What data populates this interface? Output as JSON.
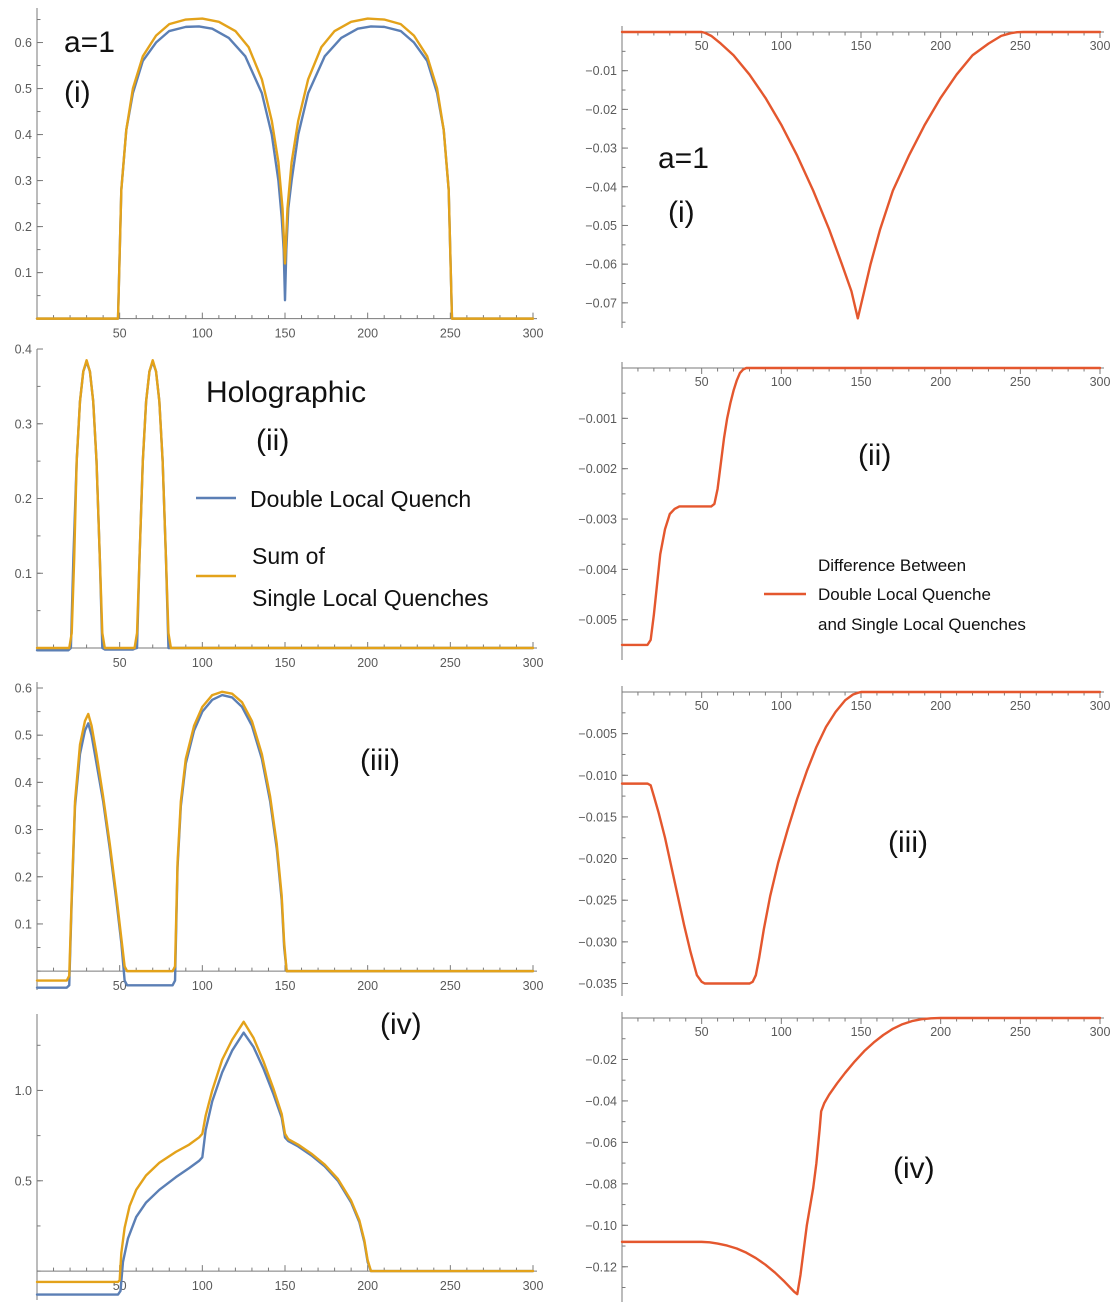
{
  "colors": {
    "double": "#5b7fb5",
    "sum": "#e3a21a",
    "difference": "#e4572e"
  },
  "legend": {
    "title": "Holographic",
    "panel_label": "(ii)",
    "double_label": "Double Local Quench",
    "sum_label_1": "Sum of",
    "sum_label_2": "Single Local Quenches",
    "diff_label_1": "Difference Between",
    "diff_label_2": "Double Local Quenche",
    "diff_label_3": "and Single Local Quenches"
  },
  "chart_data": [
    {
      "id": "L1",
      "type": "line",
      "a_label": "a=1",
      "panel_label": "(i)",
      "xlim": [
        0,
        300
      ],
      "ylim": [
        -0.003,
        0.662
      ],
      "yticks": [
        0.1,
        0.2,
        0.3,
        0.4,
        0.5,
        0.6
      ],
      "xticks": [
        50,
        100,
        150,
        200,
        250,
        300
      ],
      "series": [
        {
          "name": "Double Local Quench",
          "color_key": "double",
          "x": [
            0,
            49,
            51,
            54,
            58,
            64,
            72,
            80,
            90,
            98,
            106,
            116,
            126,
            136,
            142,
            146,
            148,
            149.2,
            150,
            150.8,
            152,
            154,
            158,
            164,
            174,
            184,
            194,
            202,
            210,
            220,
            228,
            236,
            242,
            246,
            249,
            251,
            300
          ],
          "y": [
            0,
            0,
            0.28,
            0.41,
            0.49,
            0.56,
            0.6,
            0.625,
            0.634,
            0.635,
            0.63,
            0.61,
            0.57,
            0.49,
            0.4,
            0.3,
            0.22,
            0.15,
            0.04,
            0.15,
            0.24,
            0.3,
            0.4,
            0.49,
            0.57,
            0.61,
            0.63,
            0.635,
            0.634,
            0.625,
            0.6,
            0.56,
            0.49,
            0.41,
            0.28,
            0,
            0
          ]
        },
        {
          "name": "Sum of Single Local Quenches",
          "color_key": "sum",
          "x": [
            0,
            49,
            51,
            54,
            58,
            64,
            72,
            80,
            90,
            100,
            110,
            120,
            128,
            136,
            142,
            146,
            148.5,
            150,
            151.5,
            154,
            158,
            164,
            172,
            180,
            190,
            200,
            210,
            220,
            228,
            236,
            242,
            246,
            249,
            251,
            300
          ],
          "y": [
            0,
            0,
            0.28,
            0.41,
            0.5,
            0.57,
            0.615,
            0.64,
            0.65,
            0.652,
            0.645,
            0.625,
            0.59,
            0.52,
            0.43,
            0.34,
            0.24,
            0.12,
            0.24,
            0.34,
            0.43,
            0.52,
            0.59,
            0.625,
            0.645,
            0.652,
            0.65,
            0.64,
            0.615,
            0.57,
            0.5,
            0.41,
            0.28,
            0,
            0
          ]
        }
      ]
    },
    {
      "id": "L2",
      "type": "line",
      "xlim": [
        0,
        300
      ],
      "ylim": [
        -0.004,
        0.392
      ],
      "yticks": [
        0.1,
        0.2,
        0.3,
        0.4
      ],
      "xticks": [
        50,
        100,
        150,
        200,
        250,
        300
      ],
      "series": [
        {
          "name": "Double Local Quench",
          "color_key": "double",
          "x": [
            0,
            19,
            20.5,
            22,
            24,
            26,
            28,
            30,
            32,
            34,
            36,
            38,
            39.5,
            41,
            42,
            58,
            59,
            60.5,
            62,
            64,
            66,
            68,
            70,
            72,
            74,
            76,
            78,
            79.5,
            81,
            300
          ],
          "y": [
            -0.003,
            -0.003,
            0,
            0.12,
            0.25,
            0.33,
            0.37,
            0.383,
            0.37,
            0.33,
            0.25,
            0.12,
            0,
            -0.002,
            -0.002,
            -0.002,
            -0.001,
            0,
            0.12,
            0.25,
            0.33,
            0.37,
            0.383,
            0.37,
            0.33,
            0.25,
            0.12,
            0,
            0,
            0
          ]
        },
        {
          "name": "Sum of Single Local Quenches",
          "color_key": "sum",
          "x": [
            0,
            19.5,
            21,
            22.5,
            24,
            26,
            28,
            30,
            32,
            34,
            36,
            38,
            39.5,
            41,
            59,
            60.5,
            62,
            64,
            66,
            68,
            70,
            72,
            74,
            76,
            78,
            79.5,
            81,
            300
          ],
          "y": [
            0,
            0,
            0.02,
            0.12,
            0.25,
            0.33,
            0.37,
            0.385,
            0.37,
            0.33,
            0.25,
            0.12,
            0.02,
            0,
            0,
            0.02,
            0.12,
            0.25,
            0.33,
            0.37,
            0.385,
            0.37,
            0.33,
            0.25,
            0.12,
            0.02,
            0,
            0
          ]
        }
      ]
    },
    {
      "id": "L3",
      "type": "line",
      "panel_label": "(iii)",
      "xlim": [
        0,
        300
      ],
      "ylim": [
        -0.04,
        0.6
      ],
      "yticks": [
        0.1,
        0.2,
        0.3,
        0.4,
        0.5,
        0.6
      ],
      "xticks": [
        50,
        100,
        150,
        200,
        250,
        300
      ],
      "series": [
        {
          "name": "Double Local Quench",
          "color_key": "double",
          "x": [
            0,
            18,
            19.5,
            21,
            23,
            26,
            29,
            31,
            33,
            36,
            40,
            44,
            48,
            51,
            53,
            54.5,
            56,
            82,
            83.5,
            85,
            87,
            90,
            95,
            100,
            106,
            112,
            118,
            124,
            130,
            136,
            141,
            145,
            148,
            149.5,
            151,
            300
          ],
          "y": [
            -0.035,
            -0.035,
            -0.03,
            0.15,
            0.35,
            0.46,
            0.51,
            0.525,
            0.5,
            0.44,
            0.36,
            0.26,
            0.15,
            0.06,
            -0.02,
            -0.03,
            -0.03,
            -0.03,
            -0.02,
            0.22,
            0.35,
            0.44,
            0.51,
            0.55,
            0.575,
            0.585,
            0.58,
            0.56,
            0.52,
            0.45,
            0.36,
            0.26,
            0.15,
            0.05,
            0,
            0
          ]
        },
        {
          "name": "Sum of Single Local Quenches",
          "color_key": "sum",
          "x": [
            0,
            18,
            19.5,
            21,
            23,
            26,
            29,
            31,
            33,
            36,
            40,
            44,
            48,
            51,
            53,
            54.5,
            56,
            82,
            83.5,
            85,
            87,
            90,
            95,
            100,
            106,
            112,
            118,
            124,
            130,
            136,
            141,
            145,
            148,
            149.5,
            151,
            300
          ],
          "y": [
            -0.02,
            -0.02,
            -0.01,
            0.16,
            0.36,
            0.48,
            0.53,
            0.545,
            0.52,
            0.46,
            0.37,
            0.27,
            0.16,
            0.07,
            0.01,
            0,
            0,
            0,
            0.01,
            0.23,
            0.36,
            0.45,
            0.52,
            0.56,
            0.585,
            0.592,
            0.588,
            0.57,
            0.53,
            0.46,
            0.37,
            0.27,
            0.16,
            0.06,
            0,
            0
          ]
        }
      ]
    },
    {
      "id": "L4",
      "type": "line",
      "panel_label": "(iv)",
      "xlim": [
        0,
        300
      ],
      "ylim": [
        -0.16,
        1.39
      ],
      "yticks": [
        0.5,
        1.0
      ],
      "xticks": [
        50,
        100,
        150,
        200,
        250,
        300
      ],
      "series": [
        {
          "name": "Double Local Quench",
          "color_key": "double",
          "x": [
            0,
            49,
            50.5,
            52,
            55,
            60,
            66,
            74,
            84,
            92,
            98,
            100,
            102,
            106,
            112,
            118,
            125,
            131,
            137,
            143,
            148,
            150,
            152,
            158,
            166,
            174,
            182,
            190,
            195,
            198,
            200,
            202,
            300
          ],
          "y": [
            -0.13,
            -0.13,
            -0.11,
            0.05,
            0.18,
            0.3,
            0.38,
            0.45,
            0.52,
            0.57,
            0.61,
            0.63,
            0.78,
            0.94,
            1.1,
            1.22,
            1.32,
            1.24,
            1.12,
            0.98,
            0.85,
            0.74,
            0.72,
            0.69,
            0.64,
            0.58,
            0.5,
            0.38,
            0.27,
            0.16,
            0.05,
            0,
            0
          ]
        },
        {
          "name": "Sum of Single Local Quenches",
          "color_key": "sum",
          "x": [
            0,
            49,
            50,
            51,
            53,
            56,
            60,
            66,
            74,
            84,
            92,
            98,
            100,
            102,
            106,
            112,
            118,
            125,
            131,
            137,
            143,
            148,
            150,
            152,
            158,
            166,
            174,
            182,
            190,
            195,
            198,
            200,
            202,
            300
          ],
          "y": [
            -0.06,
            -0.06,
            -0.05,
            0.1,
            0.24,
            0.36,
            0.45,
            0.53,
            0.6,
            0.66,
            0.7,
            0.74,
            0.76,
            0.86,
            1.0,
            1.17,
            1.28,
            1.38,
            1.29,
            1.16,
            1.01,
            0.87,
            0.76,
            0.73,
            0.7,
            0.65,
            0.59,
            0.51,
            0.39,
            0.28,
            0.17,
            0.06,
            0,
            0
          ]
        }
      ]
    },
    {
      "id": "R1",
      "type": "line",
      "a_label": "a=1",
      "panel_label": "(i)",
      "xlim": [
        0,
        300
      ],
      "ylim": [
        -0.0765,
        0
      ],
      "yticks": [
        -0.01,
        -0.02,
        -0.03,
        -0.04,
        -0.05,
        -0.06,
        -0.07
      ],
      "ytick_labels": [
        "−0.01",
        "−0.02",
        "−0.03",
        "−0.04",
        "−0.05",
        "−0.06",
        "−0.07"
      ],
      "xticks": [
        50,
        100,
        150,
        200,
        250,
        300
      ],
      "series": [
        {
          "name": "Difference",
          "color_key": "difference",
          "x": [
            0,
            50,
            52,
            56,
            62,
            70,
            80,
            90,
            100,
            110,
            120,
            130,
            138,
            144,
            148,
            152,
            156,
            162,
            170,
            180,
            190,
            200,
            210,
            220,
            230,
            238,
            244,
            248,
            252,
            300
          ],
          "y": [
            0,
            0,
            -0.0002,
            -0.001,
            -0.003,
            -0.006,
            -0.011,
            -0.017,
            -0.024,
            -0.032,
            -0.041,
            -0.051,
            -0.06,
            -0.067,
            -0.074,
            -0.067,
            -0.06,
            -0.051,
            -0.041,
            -0.032,
            -0.024,
            -0.017,
            -0.011,
            -0.006,
            -0.003,
            -0.001,
            -0.0003,
            -5e-05,
            0,
            0
          ]
        }
      ]
    },
    {
      "id": "R2",
      "type": "line",
      "panel_label": "(ii)",
      "xlim": [
        0,
        300
      ],
      "ylim": [
        -0.0058,
        0
      ],
      "yticks": [
        -0.001,
        -0.002,
        -0.003,
        -0.004,
        -0.005
      ],
      "ytick_labels": [
        "−0.001",
        "−0.002",
        "−0.003",
        "−0.004",
        "−0.005"
      ],
      "xticks": [
        50,
        100,
        150,
        200,
        250,
        300
      ],
      "series": [
        {
          "name": "Difference",
          "color_key": "difference",
          "x": [
            0,
            16,
            18,
            20,
            22,
            24,
            27,
            30,
            33,
            36,
            40,
            56,
            58,
            60,
            62,
            64,
            66,
            68,
            70,
            72,
            74,
            76,
            78,
            80,
            300
          ],
          "y": [
            -0.0055,
            -0.0055,
            -0.0054,
            -0.0049,
            -0.0043,
            -0.0037,
            -0.0032,
            -0.0029,
            -0.0028,
            -0.00275,
            -0.00275,
            -0.00275,
            -0.0027,
            -0.0024,
            -0.0019,
            -0.0014,
            -0.001,
            -0.0007,
            -0.00045,
            -0.00025,
            -0.0001,
            -3e-05,
            0,
            0,
            0
          ]
        }
      ]
    },
    {
      "id": "R3",
      "type": "line",
      "panel_label": "(iii)",
      "xlim": [
        0,
        300
      ],
      "ylim": [
        -0.0365,
        0
      ],
      "yticks": [
        -0.005,
        -0.01,
        -0.015,
        -0.02,
        -0.025,
        -0.03,
        -0.035
      ],
      "ytick_labels": [
        "−0.005",
        "−0.010",
        "−0.015",
        "−0.020",
        "−0.025",
        "−0.030",
        "−0.035"
      ],
      "xticks": [
        50,
        100,
        150,
        200,
        250,
        300
      ],
      "series": [
        {
          "name": "Difference",
          "color_key": "difference",
          "x": [
            0,
            16,
            18,
            20,
            23,
            27,
            31,
            35,
            39,
            43,
            47,
            50,
            52,
            54,
            56,
            80,
            82,
            84,
            86,
            89,
            93,
            98,
            104,
            110,
            116,
            122,
            128,
            134,
            140,
            145,
            148,
            150,
            300
          ],
          "y": [
            -0.011,
            -0.011,
            -0.0112,
            -0.0125,
            -0.0145,
            -0.0175,
            -0.021,
            -0.0245,
            -0.028,
            -0.0312,
            -0.034,
            -0.0348,
            -0.035,
            -0.035,
            -0.035,
            -0.035,
            -0.0348,
            -0.034,
            -0.032,
            -0.0285,
            -0.0245,
            -0.0205,
            -0.0165,
            -0.0128,
            -0.0095,
            -0.0066,
            -0.0042,
            -0.0024,
            -0.001,
            -0.0003,
            -0.0001,
            0,
            0
          ]
        }
      ]
    },
    {
      "id": "R4",
      "type": "line",
      "panel_label": "(iv)",
      "xlim": [
        0,
        300
      ],
      "ylim": [
        -0.137,
        0
      ],
      "yticks": [
        -0.02,
        -0.04,
        -0.06,
        -0.08,
        -0.1,
        -0.12
      ],
      "ytick_labels": [
        "−0.02",
        "−0.04",
        "−0.06",
        "−0.08",
        "−0.10",
        "−0.12"
      ],
      "xticks": [
        50,
        100,
        150,
        200,
        250,
        300
      ],
      "series": [
        {
          "name": "Difference",
          "color_key": "difference",
          "x": [
            0,
            50,
            55,
            60,
            66,
            72,
            78,
            84,
            90,
            96,
            102,
            108,
            110,
            112,
            116,
            120,
            122,
            124,
            125,
            127,
            130,
            135,
            140,
            146,
            152,
            158,
            164,
            170,
            176,
            182,
            188,
            194,
            198,
            200,
            300
          ],
          "y": [
            -0.108,
            -0.108,
            -0.1082,
            -0.1088,
            -0.1098,
            -0.1112,
            -0.1132,
            -0.1158,
            -0.119,
            -0.1228,
            -0.1272,
            -0.132,
            -0.1332,
            -0.124,
            -0.1,
            -0.082,
            -0.07,
            -0.054,
            -0.045,
            -0.041,
            -0.037,
            -0.0315,
            -0.0265,
            -0.021,
            -0.016,
            -0.0118,
            -0.0082,
            -0.0052,
            -0.003,
            -0.0015,
            -0.0006,
            -0.00015,
            -3e-05,
            0,
            0
          ]
        }
      ]
    }
  ]
}
